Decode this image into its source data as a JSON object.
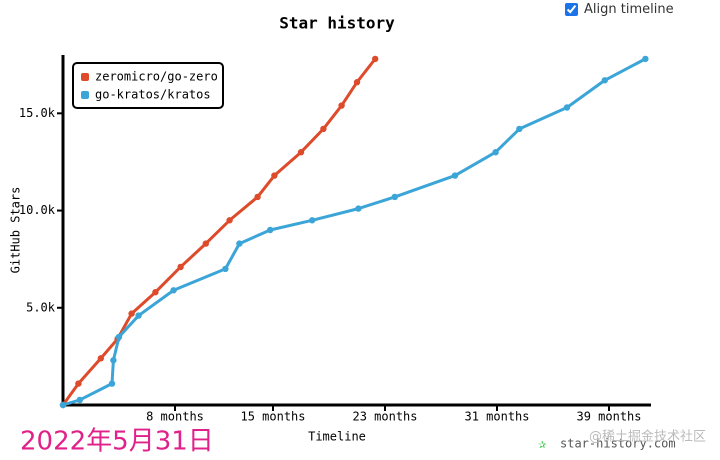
{
  "chart_data": {
    "type": "line",
    "title": "Star history",
    "xlabel": "Timeline",
    "ylabel": "GitHub Stars",
    "xlim": [
      0,
      42
    ],
    "ylim": [
      0,
      18000
    ],
    "xticks": [
      {
        "value": 8,
        "label": "8 months"
      },
      {
        "value": 15,
        "label": "15 months"
      },
      {
        "value": 23,
        "label": "23 months"
      },
      {
        "value": 31,
        "label": "31 months"
      },
      {
        "value": 39,
        "label": "39 months"
      }
    ],
    "yticks": [
      {
        "value": 5000,
        "label": "5.0k"
      },
      {
        "value": 10000,
        "label": "10.0k"
      },
      {
        "value": 15000,
        "label": "15.0k"
      }
    ],
    "legend": "top-left",
    "series": [
      {
        "name": "zeromicro/go-zero",
        "color": "#dd4b2b",
        "x": [
          0,
          1.1,
          2.7,
          3.9,
          4.9,
          6.6,
          8.4,
          10.2,
          11.9,
          13.9,
          15.1,
          17.0,
          18.6,
          19.9,
          21.0,
          22.3
        ],
        "values": [
          0,
          1100,
          2400,
          3400,
          4700,
          5800,
          7100,
          8300,
          9500,
          10700,
          11800,
          13000,
          14200,
          15400,
          16600,
          17800
        ]
      },
      {
        "name": "go-kratos/kratos",
        "color": "#3ba5d8",
        "x": [
          0,
          1.2,
          3.5,
          3.6,
          4.0,
          5.4,
          7.9,
          11.6,
          12.6,
          14.8,
          17.8,
          21.1,
          23.7,
          28.0,
          30.9,
          32.6,
          36.0,
          38.7,
          41.6
        ],
        "values": [
          0,
          260,
          1100,
          2300,
          3500,
          4600,
          5900,
          7000,
          8300,
          9000,
          9500,
          10100,
          10700,
          11800,
          13000,
          14200,
          15300,
          16700,
          17800
        ]
      }
    ]
  },
  "controls": {
    "align_timeline": {
      "label": "Align timeline",
      "checked": true
    }
  },
  "watermark": "star-history.com",
  "overlay_date": "2022年5月31日",
  "credit": "@稀土掘金技术社区"
}
